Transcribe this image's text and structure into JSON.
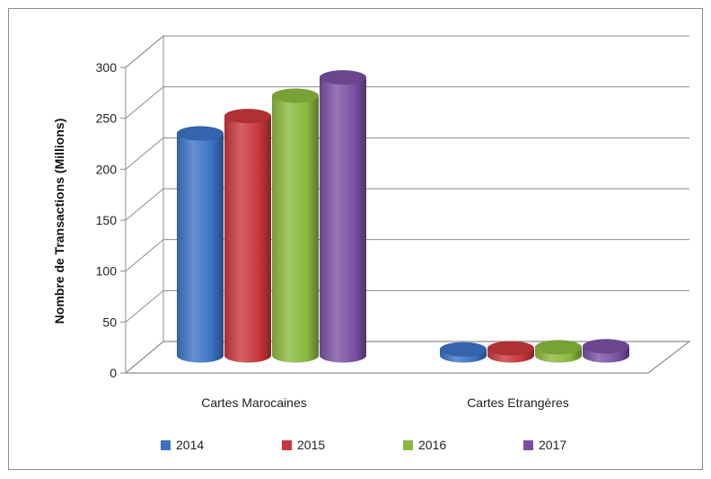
{
  "chart_data": {
    "type": "bar",
    "style": "3d-cylinder",
    "ylabel": "Nombre de Transactions (Millions)",
    "xlabel": "",
    "ylim": [
      0,
      300
    ],
    "yticks": [
      "0",
      "50",
      "100",
      "150",
      "200",
      "250",
      "300"
    ],
    "grid": true,
    "legend_position": "bottom",
    "categories": [
      "Cartes Marocaines",
      "Cartes Etrangères"
    ],
    "series": [
      {
        "name": "2014",
        "values": [
          218,
          6
        ],
        "color": "#3a72c4"
      },
      {
        "name": "2015",
        "values": [
          235,
          7
        ],
        "color": "#c9363b"
      },
      {
        "name": "2016",
        "values": [
          255,
          8
        ],
        "color": "#88b83c"
      },
      {
        "name": "2017",
        "values": [
          273,
          9
        ],
        "color": "#7a4fa3"
      }
    ]
  }
}
